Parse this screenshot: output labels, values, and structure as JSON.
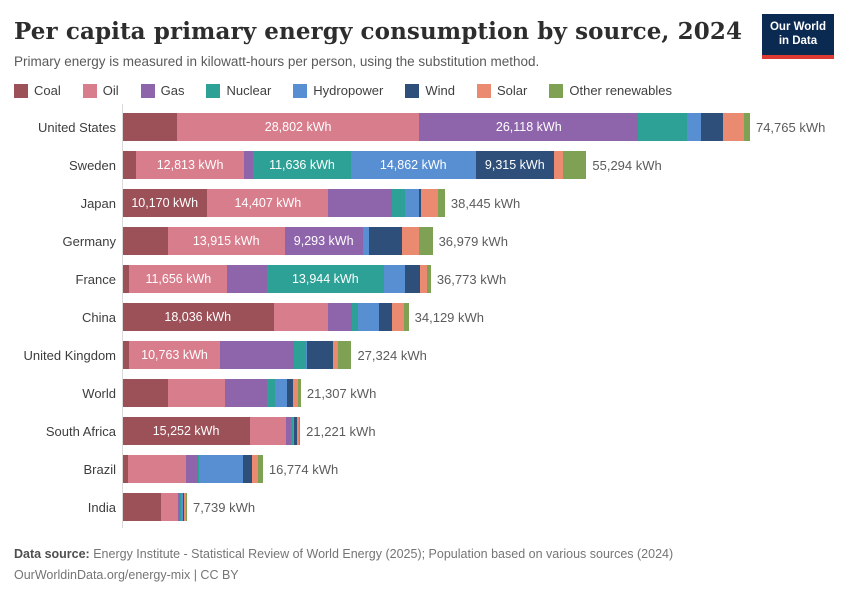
{
  "header": {
    "title": "Per capita primary energy consumption by source, 2024",
    "subtitle": "Primary energy is measured in kilowatt-hours per person, using the substitution method."
  },
  "logo": {
    "line1": "Our World",
    "line2": "in Data"
  },
  "footer": {
    "source_label": "Data source:",
    "source_text": "Energy Institute - Statistical Review of World Energy (2025); Population based on various sources (2024)",
    "license": "OurWorldinData.org/energy-mix | CC BY"
  },
  "chart_data": {
    "type": "bar",
    "stacked": true,
    "orientation": "horizontal",
    "unit": "kWh",
    "title": "Per capita primary energy consumption by source, 2024",
    "subtitle": "Primary energy is measured in kilowatt-hours per person, using the substitution method.",
    "legend_position": "top",
    "xmax": 74765,
    "sources": [
      {
        "name": "Coal",
        "color": "#9c5158"
      },
      {
        "name": "Oil",
        "color": "#d87d8c"
      },
      {
        "name": "Gas",
        "color": "#8e64ab"
      },
      {
        "name": "Nuclear",
        "color": "#2ea196"
      },
      {
        "name": "Hydropower",
        "color": "#588fd2"
      },
      {
        "name": "Wind",
        "color": "#2e4f79"
      },
      {
        "name": "Solar",
        "color": "#ea8a70"
      },
      {
        "name": "Other renewables",
        "color": "#7ea154"
      }
    ],
    "rows": [
      {
        "country": "United States",
        "total": 74765,
        "total_label": "74,765 kWh",
        "values": [
          6570,
          28802,
          26118,
          5800,
          1600,
          2700,
          2500,
          675
        ],
        "labels": [
          null,
          "28,802 kWh",
          "26,118 kWh",
          null,
          null,
          null,
          null,
          null
        ]
      },
      {
        "country": "Sweden",
        "total": 55294,
        "total_label": "55,294 kWh",
        "values": [
          1700,
          12813,
          1100,
          11636,
          14862,
          9315,
          1050,
          2818
        ],
        "labels": [
          null,
          "12,813 kWh",
          null,
          "11,636 kWh",
          "14,862 kWh",
          "9,315 kWh",
          null,
          null
        ]
      },
      {
        "country": "Japan",
        "total": 38445,
        "total_label": "38,445 kWh",
        "values": [
          10170,
          14407,
          7556,
          1620,
          1600,
          290,
          2000,
          802
        ],
        "labels": [
          "10,170 kWh",
          "14,407 kWh",
          null,
          null,
          null,
          null,
          null,
          null
        ]
      },
      {
        "country": "Germany",
        "total": 36979,
        "total_label": "36,979 kWh",
        "values": [
          5450,
          13915,
          9293,
          0,
          750,
          3950,
          2050,
          1571
        ],
        "labels": [
          null,
          "13,915 kWh",
          "9,293 kWh",
          null,
          null,
          null,
          null,
          null
        ]
      },
      {
        "country": "France",
        "total": 36773,
        "total_label": "36,773 kWh",
        "values": [
          880,
          11656,
          4700,
          13944,
          2500,
          1800,
          893,
          400
        ],
        "labels": [
          null,
          "11,656 kWh",
          null,
          "13,944 kWh",
          null,
          null,
          null,
          null
        ]
      },
      {
        "country": "China",
        "total": 34129,
        "total_label": "34,129 kWh",
        "values": [
          18036,
          6543,
          2750,
          800,
          2450,
          1600,
          1430,
          520
        ],
        "labels": [
          "18,036 kWh",
          null,
          null,
          null,
          null,
          null,
          null,
          null
        ]
      },
      {
        "country": "United Kingdom",
        "total": 27324,
        "total_label": "27,324 kWh",
        "values": [
          870,
          10763,
          8890,
          1400,
          60,
          3180,
          600,
          1561
        ],
        "labels": [
          null,
          "10,763 kWh",
          null,
          null,
          null,
          null,
          null,
          null
        ]
      },
      {
        "country": "World",
        "total": 21307,
        "total_label": "21,307 kWh",
        "values": [
          5450,
          6850,
          4967,
          1000,
          1400,
          720,
          600,
          320
        ],
        "labels": [
          null,
          null,
          null,
          null,
          null,
          null,
          null,
          null
        ]
      },
      {
        "country": "South Africa",
        "total": 21221,
        "total_label": "21,221 kWh",
        "values": [
          15252,
          4265,
          560,
          330,
          100,
          364,
          250,
          100
        ],
        "labels": [
          "15,252 kWh",
          null,
          null,
          null,
          null,
          null,
          null,
          null
        ]
      },
      {
        "country": "Brazil",
        "total": 16774,
        "total_label": "16,774 kWh",
        "values": [
          700,
          6900,
          1450,
          100,
          5200,
          1184,
          640,
          600
        ],
        "labels": [
          null,
          null,
          null,
          null,
          null,
          null,
          null,
          null
        ]
      },
      {
        "country": "India",
        "total": 7739,
        "total_label": "7,739 kWh",
        "values": [
          4629,
          2000,
          320,
          60,
          240,
          150,
          240,
          100
        ],
        "labels": [
          null,
          null,
          null,
          null,
          null,
          null,
          null,
          null
        ]
      }
    ]
  }
}
